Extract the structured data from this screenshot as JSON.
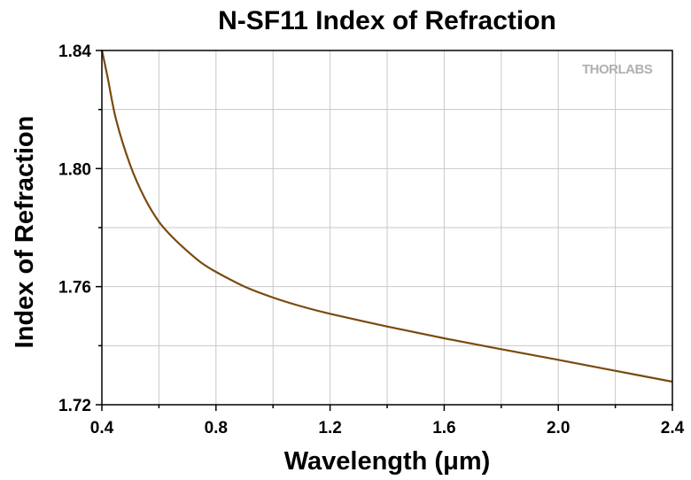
{
  "chart_data": {
    "type": "line",
    "title": "N-SF11 Index of Refraction",
    "xlabel": "Wavelength (μm)",
    "ylabel": "Index of Refraction",
    "xlim": [
      0.4,
      2.4
    ],
    "ylim": [
      1.72,
      1.84
    ],
    "x_ticks": [
      "0.4",
      "0.8",
      "1.2",
      "1.6",
      "2.0",
      "2.4"
    ],
    "y_ticks": [
      "1.72",
      "1.76",
      "1.80",
      "1.84"
    ],
    "grid": true,
    "series": [
      {
        "color": "#7a4a10",
        "x": [
          0.4,
          0.42,
          0.45,
          0.5,
          0.55,
          0.6,
          0.65,
          0.7,
          0.75,
          0.8,
          0.9,
          1.0,
          1.1,
          1.2,
          1.4,
          1.6,
          1.8,
          2.0,
          2.2,
          2.4
        ],
        "y": [
          1.8402,
          1.831,
          1.8165,
          1.801,
          1.79,
          1.782,
          1.7765,
          1.772,
          1.768,
          1.765,
          1.76,
          1.7563,
          1.7533,
          1.7508,
          1.7465,
          1.7425,
          1.7388,
          1.7352,
          1.7315,
          1.7278
        ]
      }
    ]
  },
  "logo": {
    "text": "THORLABS"
  }
}
